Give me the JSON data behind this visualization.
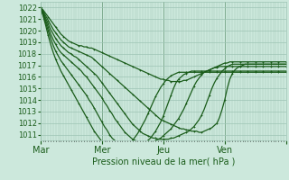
{
  "title": "Pression niveau de la mer( hPa )",
  "bg_color": "#cce8dc",
  "grid_color": "#9dc4b4",
  "line_color": "#1a5c1a",
  "ylim": [
    1010.5,
    1022.5
  ],
  "yticks": [
    1011,
    1012,
    1013,
    1014,
    1015,
    1016,
    1017,
    1018,
    1019,
    1020,
    1021,
    1022
  ],
  "xlim": [
    0,
    96
  ],
  "xtick_positions": [
    0,
    24,
    48,
    72,
    96
  ],
  "xtick_labels": [
    "Mar",
    "Mer",
    "Jeu",
    "Ven",
    ""
  ],
  "num_points": 97,
  "series": [
    [
      1022.0,
      1021.8,
      1021.5,
      1021.2,
      1020.9,
      1020.6,
      1020.3,
      1020.0,
      1019.7,
      1019.5,
      1019.3,
      1019.1,
      1019.0,
      1018.9,
      1018.8,
      1018.7,
      1018.7,
      1018.6,
      1018.6,
      1018.5,
      1018.5,
      1018.4,
      1018.3,
      1018.2,
      1018.1,
      1018.0,
      1017.9,
      1017.8,
      1017.7,
      1017.6,
      1017.5,
      1017.4,
      1017.3,
      1017.2,
      1017.1,
      1017.0,
      1016.9,
      1016.8,
      1016.7,
      1016.6,
      1016.5,
      1016.4,
      1016.3,
      1016.2,
      1016.1,
      1016.0,
      1015.9,
      1015.8,
      1015.8,
      1015.7,
      1015.7,
      1015.6,
      1015.6,
      1015.6,
      1015.6,
      1015.6,
      1015.7,
      1015.7,
      1015.8,
      1015.9,
      1016.0,
      1016.1,
      1016.2,
      1016.3,
      1016.4,
      1016.5,
      1016.6,
      1016.7,
      1016.8,
      1016.9,
      1017.0,
      1017.1,
      1017.2,
      1017.2,
      1017.3,
      1017.3,
      1017.3,
      1017.3,
      1017.3,
      1017.3,
      1017.3,
      1017.3,
      1017.3,
      1017.3,
      1017.3,
      1017.3,
      1017.3,
      1017.3,
      1017.3,
      1017.3,
      1017.3,
      1017.3,
      1017.3,
      1017.3,
      1017.3,
      1017.3,
      1017.3
    ],
    [
      1022.0,
      1021.7,
      1021.3,
      1020.9,
      1020.5,
      1020.1,
      1019.8,
      1019.5,
      1019.2,
      1019.0,
      1018.8,
      1018.6,
      1018.5,
      1018.4,
      1018.3,
      1018.2,
      1018.1,
      1018.0,
      1017.9,
      1017.8,
      1017.7,
      1017.5,
      1017.3,
      1017.1,
      1016.9,
      1016.7,
      1016.5,
      1016.3,
      1016.1,
      1015.9,
      1015.7,
      1015.5,
      1015.3,
      1015.1,
      1014.9,
      1014.7,
      1014.5,
      1014.3,
      1014.1,
      1013.9,
      1013.7,
      1013.5,
      1013.3,
      1013.1,
      1012.9,
      1012.7,
      1012.5,
      1012.3,
      1012.2,
      1012.1,
      1012.0,
      1011.9,
      1011.8,
      1011.7,
      1011.6,
      1011.5,
      1011.5,
      1011.4,
      1011.4,
      1011.3,
      1011.3,
      1011.3,
      1011.2,
      1011.2,
      1011.3,
      1011.4,
      1011.5,
      1011.6,
      1011.8,
      1012.0,
      1012.5,
      1013.2,
      1014.0,
      1015.0,
      1015.8,
      1016.3,
      1016.6,
      1016.8,
      1016.9,
      1017.0,
      1017.1,
      1017.1,
      1017.1,
      1017.1,
      1017.1,
      1017.1,
      1017.1,
      1017.1,
      1017.1,
      1017.1,
      1017.1,
      1017.1,
      1017.1,
      1017.1,
      1017.1,
      1017.1,
      1017.1
    ],
    [
      1022.0,
      1021.6,
      1021.1,
      1020.6,
      1020.1,
      1019.7,
      1019.3,
      1019.0,
      1018.7,
      1018.5,
      1018.3,
      1018.1,
      1018.0,
      1017.8,
      1017.7,
      1017.5,
      1017.3,
      1017.1,
      1016.9,
      1016.7,
      1016.5,
      1016.3,
      1016.1,
      1015.8,
      1015.5,
      1015.2,
      1014.9,
      1014.6,
      1014.3,
      1014.0,
      1013.7,
      1013.4,
      1013.1,
      1012.8,
      1012.5,
      1012.2,
      1011.9,
      1011.7,
      1011.5,
      1011.3,
      1011.1,
      1011.0,
      1010.9,
      1010.8,
      1010.7,
      1010.7,
      1010.6,
      1010.6,
      1010.6,
      1010.6,
      1010.6,
      1010.7,
      1010.7,
      1010.8,
      1010.9,
      1011.0,
      1011.1,
      1011.2,
      1011.3,
      1011.5,
      1011.7,
      1012.0,
      1012.3,
      1012.7,
      1013.2,
      1013.8,
      1014.4,
      1015.0,
      1015.5,
      1015.9,
      1016.2,
      1016.5,
      1016.7,
      1016.9,
      1017.0,
      1017.1,
      1017.1,
      1017.1,
      1017.1,
      1017.1,
      1017.1,
      1017.1,
      1017.1,
      1017.1,
      1017.1,
      1017.1,
      1017.1,
      1017.1,
      1017.1,
      1017.1,
      1017.1,
      1017.1,
      1017.1,
      1017.1,
      1017.1,
      1017.1,
      1017.1
    ],
    [
      1022.0,
      1021.5,
      1020.9,
      1020.3,
      1019.7,
      1019.2,
      1018.8,
      1018.4,
      1018.1,
      1017.9,
      1017.7,
      1017.5,
      1017.3,
      1017.1,
      1016.9,
      1016.7,
      1016.5,
      1016.2,
      1016.0,
      1015.7,
      1015.4,
      1015.1,
      1014.8,
      1014.5,
      1014.2,
      1013.8,
      1013.5,
      1013.1,
      1012.8,
      1012.4,
      1012.1,
      1011.8,
      1011.5,
      1011.2,
      1011.0,
      1010.8,
      1010.6,
      1010.5,
      1010.4,
      1010.3,
      1010.3,
      1010.3,
      1010.3,
      1010.3,
      1010.4,
      1010.5,
      1010.6,
      1010.7,
      1010.9,
      1011.1,
      1011.3,
      1011.5,
      1011.8,
      1012.1,
      1012.4,
      1012.8,
      1013.2,
      1013.7,
      1014.2,
      1014.7,
      1015.2,
      1015.6,
      1015.9,
      1016.2,
      1016.4,
      1016.5,
      1016.6,
      1016.7,
      1016.8,
      1016.8,
      1016.9,
      1016.9,
      1016.9,
      1016.9,
      1016.9,
      1016.9,
      1016.9,
      1016.9,
      1016.9,
      1016.9,
      1016.9,
      1016.9,
      1016.9,
      1016.9,
      1016.9,
      1016.9,
      1016.9,
      1016.9,
      1016.9,
      1016.9,
      1016.9,
      1016.9,
      1016.9,
      1016.9,
      1016.9,
      1016.9,
      1016.9
    ],
    [
      1022.0,
      1021.4,
      1020.7,
      1020.0,
      1019.3,
      1018.7,
      1018.2,
      1017.8,
      1017.4,
      1017.1,
      1016.8,
      1016.5,
      1016.2,
      1015.9,
      1015.6,
      1015.3,
      1015.0,
      1014.7,
      1014.4,
      1014.0,
      1013.7,
      1013.3,
      1012.9,
      1012.5,
      1012.1,
      1011.7,
      1011.4,
      1011.0,
      1010.7,
      1010.5,
      1010.3,
      1010.1,
      1010.0,
      1009.9,
      1009.8,
      1009.8,
      1009.8,
      1009.8,
      1009.9,
      1010.0,
      1010.1,
      1010.3,
      1010.5,
      1010.7,
      1011.0,
      1011.3,
      1011.7,
      1012.1,
      1012.6,
      1013.2,
      1013.8,
      1014.4,
      1015.0,
      1015.5,
      1015.8,
      1016.0,
      1016.2,
      1016.3,
      1016.4,
      1016.5,
      1016.5,
      1016.5,
      1016.5,
      1016.5,
      1016.5,
      1016.5,
      1016.5,
      1016.5,
      1016.5,
      1016.5,
      1016.5,
      1016.5,
      1016.5,
      1016.5,
      1016.5,
      1016.5,
      1016.5,
      1016.5,
      1016.5,
      1016.5,
      1016.5,
      1016.5,
      1016.5,
      1016.5,
      1016.5,
      1016.5,
      1016.5,
      1016.5,
      1016.5,
      1016.5,
      1016.5,
      1016.5,
      1016.5,
      1016.5,
      1016.5,
      1016.5,
      1016.5
    ],
    [
      1022.0,
      1021.3,
      1020.5,
      1019.6,
      1018.8,
      1018.1,
      1017.5,
      1017.0,
      1016.5,
      1016.1,
      1015.7,
      1015.3,
      1014.9,
      1014.5,
      1014.1,
      1013.7,
      1013.3,
      1012.9,
      1012.5,
      1012.1,
      1011.7,
      1011.3,
      1011.0,
      1010.7,
      1010.4,
      1010.2,
      1010.0,
      1009.9,
      1009.8,
      1009.7,
      1009.7,
      1009.7,
      1009.8,
      1009.9,
      1010.1,
      1010.3,
      1010.5,
      1010.8,
      1011.1,
      1011.5,
      1011.9,
      1012.3,
      1012.8,
      1013.3,
      1013.8,
      1014.3,
      1014.7,
      1015.1,
      1015.4,
      1015.7,
      1015.9,
      1016.1,
      1016.2,
      1016.3,
      1016.4,
      1016.4,
      1016.4,
      1016.4,
      1016.4,
      1016.4,
      1016.4,
      1016.4,
      1016.4,
      1016.4,
      1016.4,
      1016.4,
      1016.4,
      1016.4,
      1016.4,
      1016.4,
      1016.4,
      1016.4,
      1016.4,
      1016.4,
      1016.4,
      1016.4,
      1016.4,
      1016.4,
      1016.4,
      1016.4,
      1016.4,
      1016.4,
      1016.4,
      1016.4,
      1016.4,
      1016.4,
      1016.4,
      1016.4,
      1016.4,
      1016.4,
      1016.4,
      1016.4,
      1016.4,
      1016.4,
      1016.4,
      1016.4,
      1016.4
    ]
  ]
}
